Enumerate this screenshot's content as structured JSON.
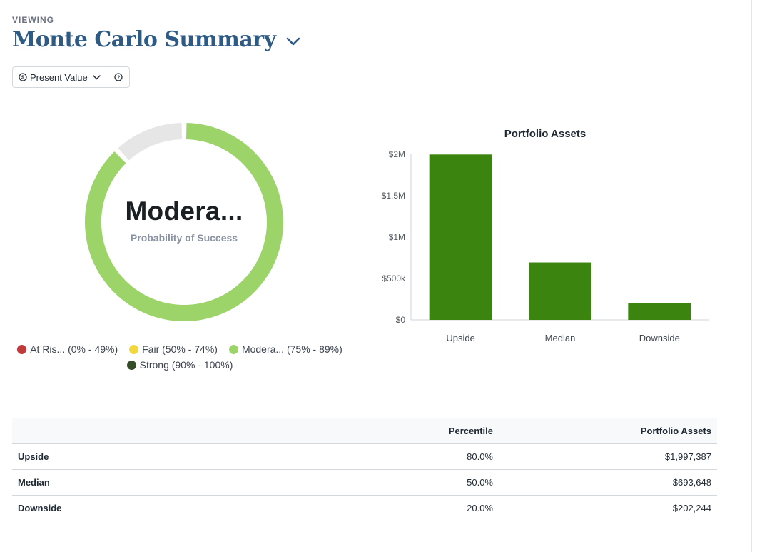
{
  "header": {
    "eyebrow": "VIEWING",
    "title": "Monte Carlo Summary",
    "title_icon": "chevron-down-icon"
  },
  "toolbar": {
    "value_mode_label": "Present Value",
    "value_mode_icon": "dollar-circle-icon",
    "value_mode_chevron": "chevron-down-icon",
    "help_icon": "question-circle-icon"
  },
  "donut": {
    "value_label": "Modera...",
    "subtitle": "Probability of Success",
    "probability": 0.88,
    "fill_color": "#9dd46a",
    "track_color": "#e6e6e6"
  },
  "legend": [
    {
      "label": "At Ris... (0% - 49%)",
      "color": "#c0393b"
    },
    {
      "label": "Fair (50% - 74%)",
      "color": "#f3d83d"
    },
    {
      "label": "Modera... (75% - 89%)",
      "color": "#9dd46a"
    },
    {
      "label": "Strong (90% - 100%)",
      "color": "#344f27"
    }
  ],
  "chart_data": {
    "type": "bar",
    "title": "Portfolio Assets",
    "categories": [
      "Upside",
      "Median",
      "Downside"
    ],
    "values": [
      1997387,
      693648,
      202244
    ],
    "ylim": [
      0,
      2000000
    ],
    "yticks": [
      0,
      500000,
      1000000,
      1500000,
      2000000
    ],
    "ytick_labels": [
      "$0",
      "$500k",
      "$1M",
      "$1.5M",
      "$2M"
    ],
    "xlabel": "",
    "ylabel": "",
    "grid": false,
    "bar_color": "#3c8410"
  },
  "table": {
    "headers": [
      "",
      "Percentile",
      "Portfolio Assets"
    ],
    "rows": [
      {
        "name": "Upside",
        "percentile": "80.0%",
        "assets": "$1,997,387"
      },
      {
        "name": "Median",
        "percentile": "50.0%",
        "assets": "$693,648"
      },
      {
        "name": "Downside",
        "percentile": "20.0%",
        "assets": "$202,244"
      }
    ]
  }
}
